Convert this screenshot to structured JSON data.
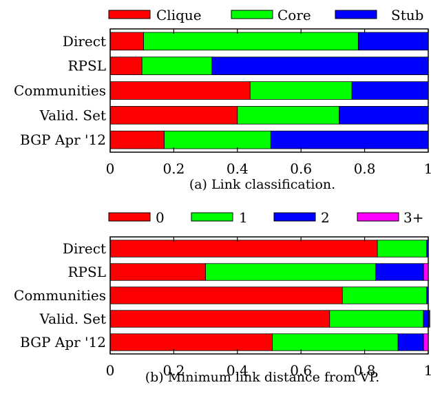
{
  "chart_data": [
    {
      "type": "bar",
      "orientation": "horizontal",
      "stacked": true,
      "caption": "(a) Link classification.",
      "categories": [
        "Direct",
        "RPSL",
        "Communities",
        "Valid. Set",
        "BGP Apr '12"
      ],
      "series": [
        {
          "name": "Clique",
          "color": "#ff0000",
          "values": [
            0.105,
            0.1,
            0.44,
            0.4,
            0.17
          ]
        },
        {
          "name": "Core",
          "color": "#00ff00",
          "values": [
            0.675,
            0.22,
            0.32,
            0.32,
            0.335
          ]
        },
        {
          "name": "Stub",
          "color": "#0000ff",
          "values": [
            0.22,
            0.68,
            0.24,
            0.28,
            0.495
          ]
        }
      ],
      "xlim": [
        0,
        1
      ],
      "xticks": [
        "0",
        "0.2",
        "0.4",
        "0.6",
        "0.8",
        "1"
      ],
      "grid": false,
      "legend": "top"
    },
    {
      "type": "bar",
      "orientation": "horizontal",
      "stacked": true,
      "caption": "(b) Minimum link distance from VP.",
      "categories": [
        "Direct",
        "RPSL",
        "Communities",
        "Valid. Set",
        "BGP Apr '12"
      ],
      "series": [
        {
          "name": "0",
          "color": "#ff0000",
          "values": [
            0.84,
            0.3,
            0.73,
            0.69,
            0.51
          ]
        },
        {
          "name": "1",
          "color": "#00ff00",
          "values": [
            0.155,
            0.535,
            0.265,
            0.295,
            0.395
          ]
        },
        {
          "name": "2",
          "color": "#0000ff",
          "values": [
            0.005,
            0.15,
            0.005,
            0.02,
            0.08
          ]
        },
        {
          "name": "3+",
          "color": "#ff00ff",
          "values": [
            0.0,
            0.015,
            0.0,
            0.0,
            0.015
          ]
        }
      ],
      "xlim": [
        0,
        1
      ],
      "xticks": [
        "0",
        "0.2",
        "0.4",
        "0.6",
        "0.8",
        "1"
      ],
      "grid": false,
      "legend": "top"
    }
  ]
}
